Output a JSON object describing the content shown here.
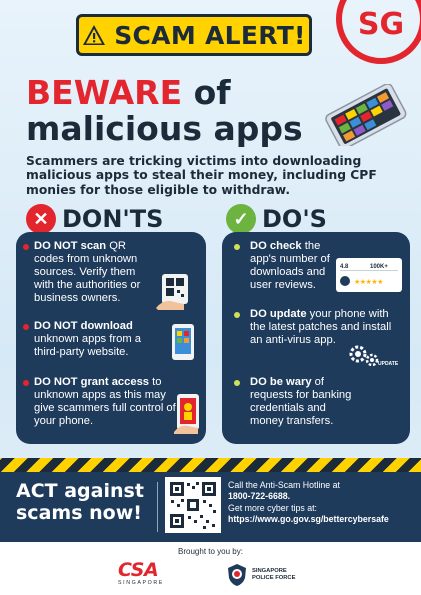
{
  "header": {
    "alert_text": "SCAM ALERT!",
    "sg_logo_text": "SG",
    "headline_word1": "BEWARE",
    "headline_word2": "of",
    "headline_line2": "malicious apps"
  },
  "intro": "Scammers are tricking victims into downloading malicious apps to steal their money, including CPF monies for those eligible to withdraw.",
  "donts": {
    "heading": "DON'TS",
    "items": [
      {
        "bold": "DO NOT scan",
        "rest": " QR codes from unknown sources. Verify them with the authorities or business owners."
      },
      {
        "bold": "DO NOT download",
        "rest": " unknown apps from a third-party website."
      },
      {
        "bold": "DO NOT grant access",
        "rest": " to unknown apps as this may give scammers full control of your phone."
      }
    ]
  },
  "dos": {
    "heading": "DO'S",
    "items": [
      {
        "bold": "DO check",
        "rest": " the app's number of downloads and user reviews."
      },
      {
        "bold": "DO update",
        "rest": " your phone with the latest patches and install an anti-virus app."
      },
      {
        "bold": "DO be wary",
        "rest": " of requests for banking credentials and money transfers."
      }
    ],
    "rating_illus": {
      "rating": "4.8",
      "downloads": "100K+",
      "update_label": "UPDATE"
    }
  },
  "bottom": {
    "act_text": "ACT against scams now!",
    "hotline_line": "Call the Anti-Scam Hotline at",
    "hotline_number": "1800-722-6688.",
    "tips_line": "Get more cyber tips at:",
    "tips_url": "https://www.go.gov.sg/bettercybersafe"
  },
  "footer": {
    "brought_by": "Brought to you by:",
    "csa_text": "CSA",
    "csa_sub": "SINGAPORE",
    "spf_line1": "SINGAPORE",
    "spf_line2": "POLICE FORCE"
  },
  "colors": {
    "red": "#e3262e",
    "navy": "#1f3b5c",
    "yellow": "#ffd200",
    "green": "#6cb33f"
  }
}
